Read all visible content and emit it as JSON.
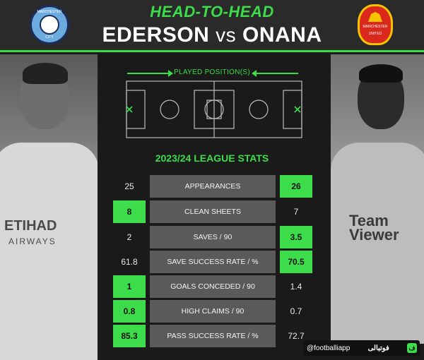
{
  "header": {
    "kicker": "HEAD-TO-HEAD",
    "player_left": "EDERSON",
    "vs": "vs",
    "player_right": "ONANA",
    "accent_color": "#3ddc4a"
  },
  "badges": {
    "left": {
      "icon": "manchester-city-crest",
      "top_text": "MANCHESTER",
      "bottom_text": "CITY"
    },
    "right": {
      "icon": "manchester-united-crest",
      "top_text": "MANCHESTER",
      "bottom_text": "UNITED"
    }
  },
  "kits": {
    "left_sponsor": "ETIHAD",
    "left_sponsor_sub": "AIRWAYS",
    "right_sponsor": "Team\nViewer"
  },
  "position_section": {
    "label": "PLAYED POSITION(S)",
    "icon": "football-pitch-diagram"
  },
  "stats_section": {
    "title": "2023/24 LEAGUE STATS",
    "rows": [
      {
        "label": "APPEARANCES",
        "left": "25",
        "right": "26",
        "winner": "right"
      },
      {
        "label": "CLEAN SHEETS",
        "left": "8",
        "right": "7",
        "winner": "left"
      },
      {
        "label": "SAVES / 90",
        "left": "2",
        "right": "3.5",
        "winner": "right"
      },
      {
        "label": "SAVE SUCCESS RATE / %",
        "left": "61.8",
        "right": "70.5",
        "winner": "right"
      },
      {
        "label": "GOALS CONCEDED / 90",
        "left": "1",
        "right": "1.4",
        "winner": "left"
      },
      {
        "label": "HIGH CLAIMS / 90",
        "left": "0.8",
        "right": "0.7",
        "winner": "left"
      },
      {
        "label": "PASS SUCCESS RATE / %",
        "left": "85.3",
        "right": "72.7",
        "winner": "left"
      }
    ]
  },
  "watermark": {
    "handle": "@footballiapp",
    "brand": "فوتبالی",
    "logo_glyph": "ف"
  }
}
